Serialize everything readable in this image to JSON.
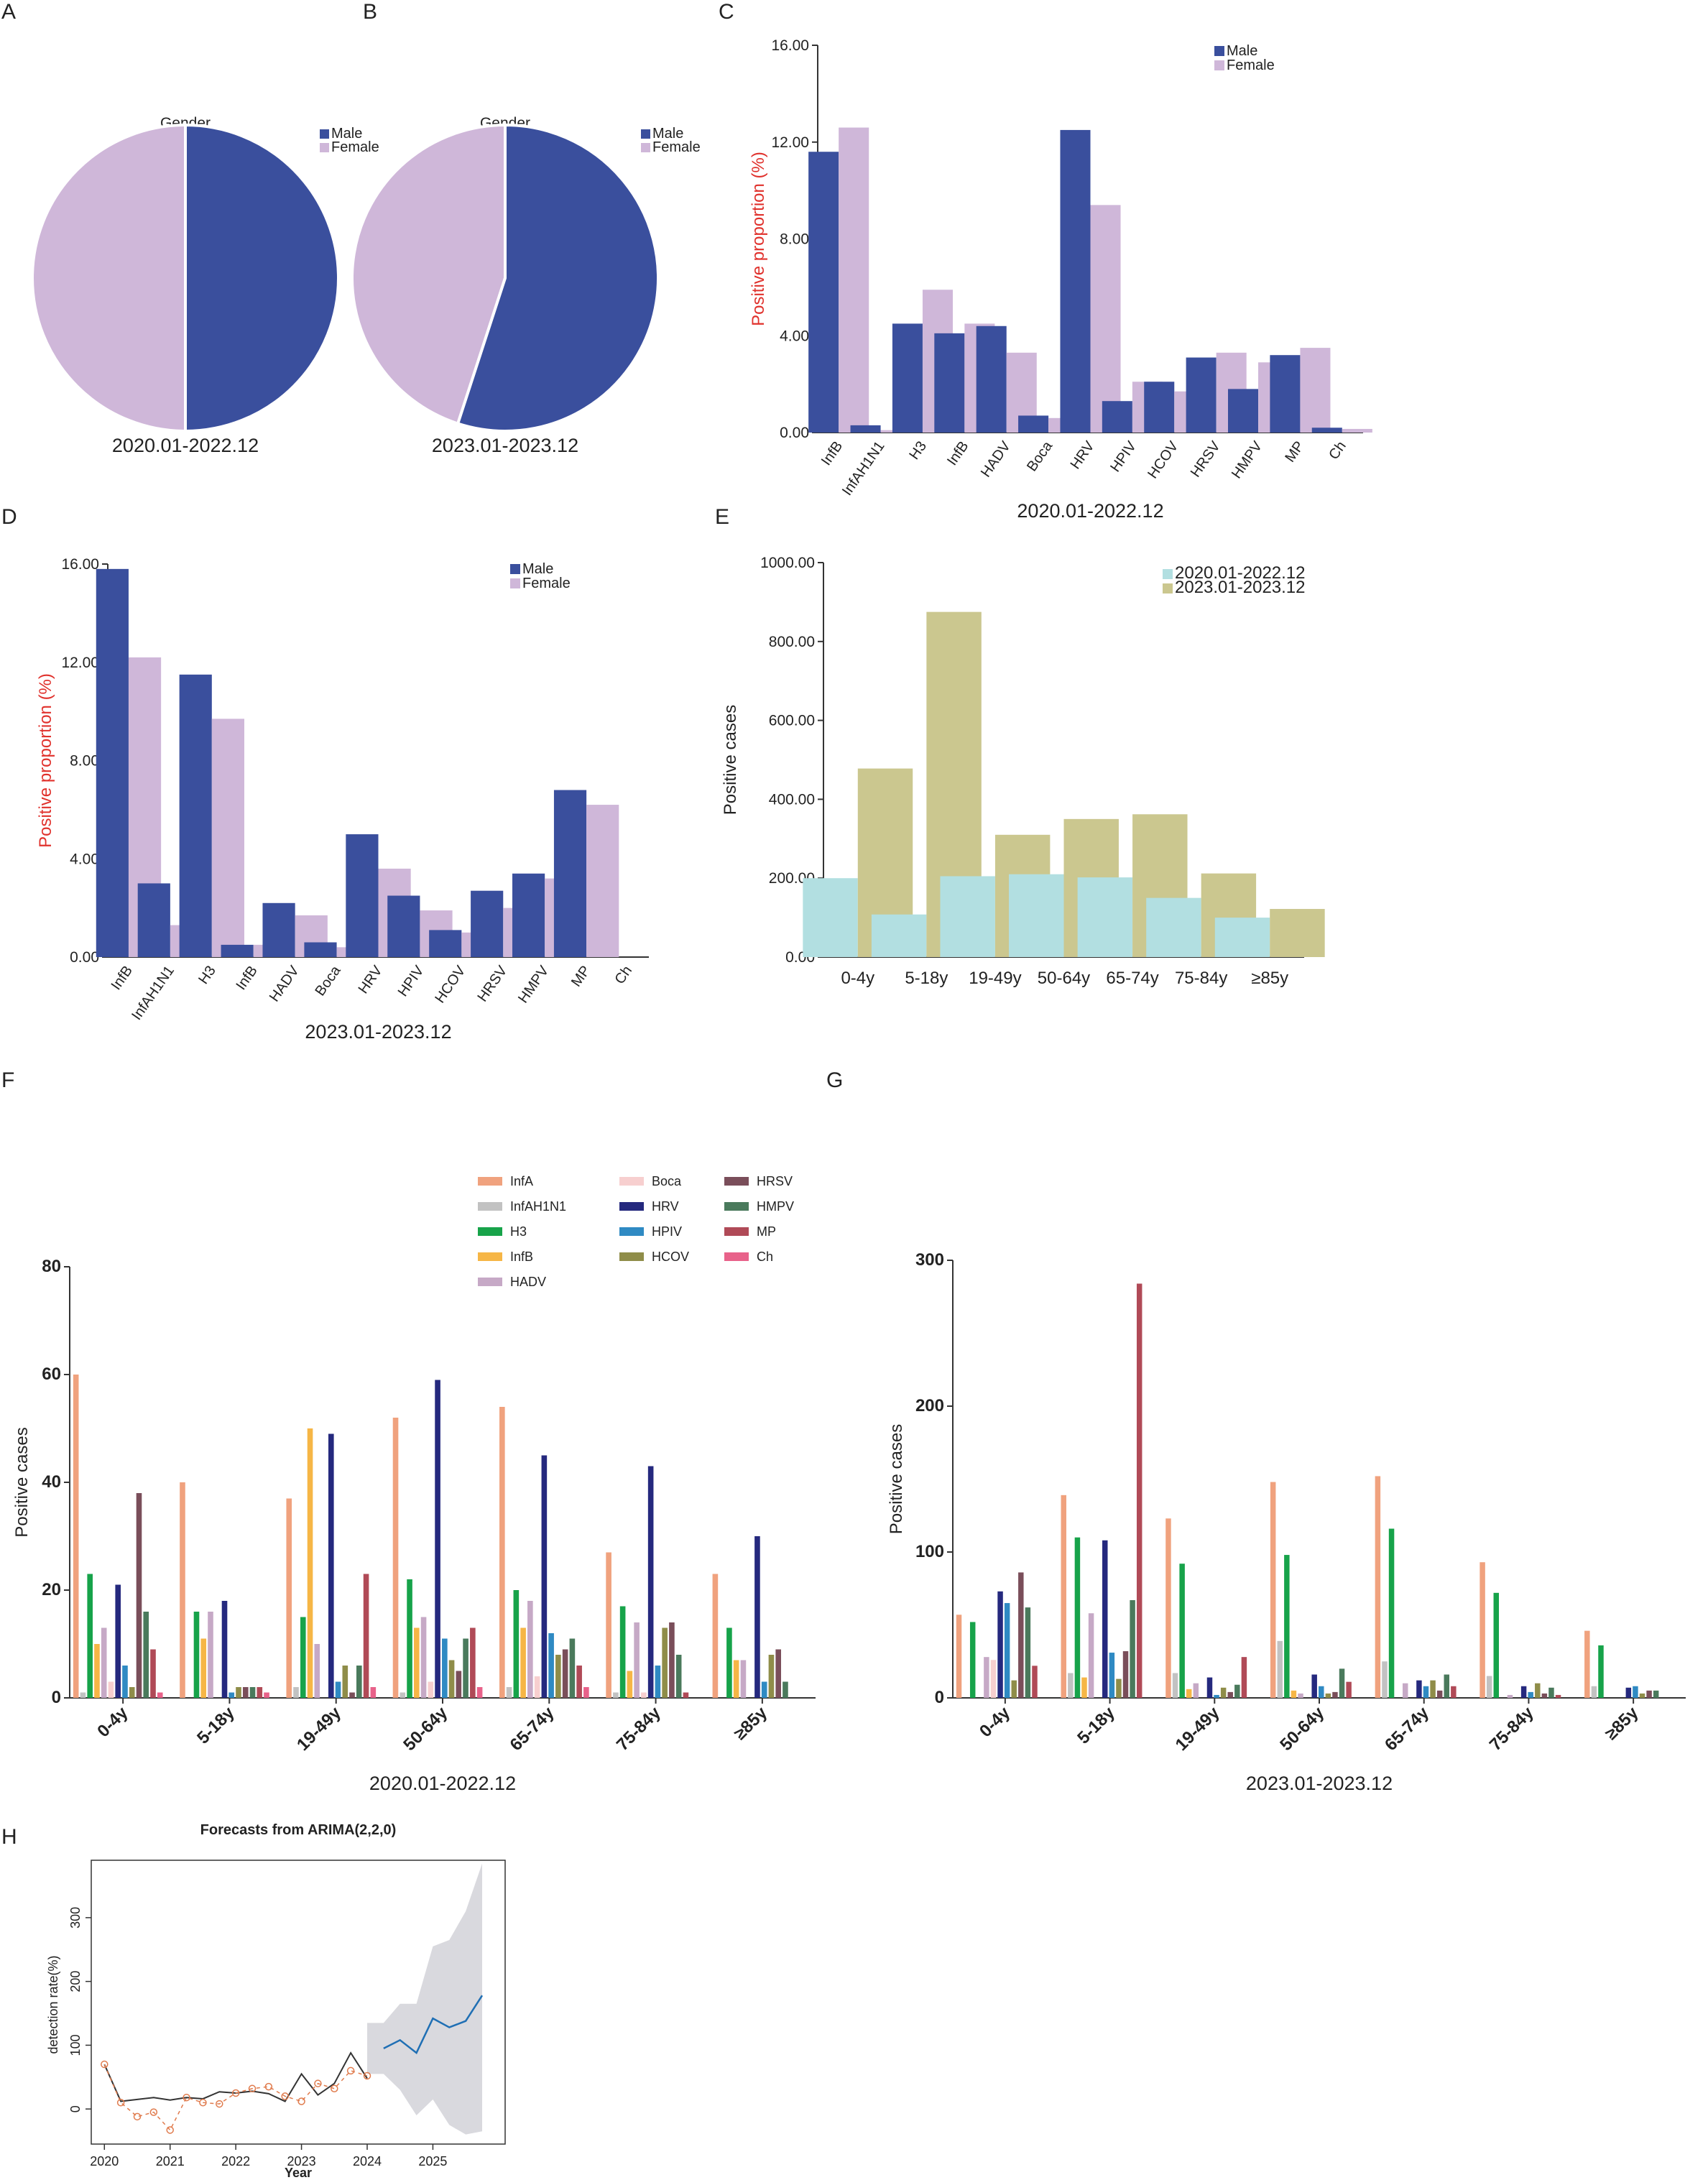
{
  "panel_letters": {
    "A": "A",
    "B": "B",
    "C": "C",
    "D": "D",
    "E": "E",
    "F": "F",
    "G": "G",
    "H": "H"
  },
  "colors": {
    "male": "#3a4f9d",
    "female": "#cfb7d9",
    "period1": "#b2dfe1",
    "period2": "#cbc78f",
    "ylabel_red": "#e0312c",
    "axis": "#333333"
  },
  "chart_data": [
    {
      "id": "A",
      "type": "pie",
      "title": "Gender",
      "xlabel": "2020.01-2022.12",
      "legend": [
        "Male",
        "Female"
      ],
      "values": [
        50.0,
        50.0
      ]
    },
    {
      "id": "B",
      "type": "pie",
      "title": "Gender",
      "xlabel": "2023.01-2023.12",
      "legend": [
        "Male",
        "Female"
      ],
      "values": [
        55.0,
        45.0
      ]
    },
    {
      "id": "C",
      "type": "bar",
      "xlabel": "2020.01-2022.12",
      "ylabel": "Positive proportion (%)",
      "ylim": [
        0,
        16
      ],
      "yticks": [
        "0.00",
        "4.00",
        "8.00",
        "12.00",
        "16.00"
      ],
      "categories": [
        "InfB",
        "InfAH1N1",
        "H3",
        "InfB",
        "HADV",
        "Boca",
        "HRV",
        "HPIV",
        "HCOV",
        "HRSV",
        "HMPV",
        "MP",
        "Ch"
      ],
      "series": [
        {
          "name": "Male",
          "values": [
            11.6,
            0.3,
            4.5,
            4.1,
            4.4,
            0.7,
            12.5,
            1.3,
            2.1,
            3.1,
            1.8,
            3.2,
            0.2
          ]
        },
        {
          "name": "Female",
          "values": [
            12.6,
            0.1,
            5.9,
            4.5,
            3.3,
            0.6,
            9.4,
            2.1,
            1.7,
            3.3,
            2.9,
            3.5,
            0.15
          ]
        }
      ]
    },
    {
      "id": "D",
      "type": "bar",
      "xlabel": "2023.01-2023.12",
      "ylabel": "Positive proportion (%)",
      "ylim": [
        0,
        16
      ],
      "yticks": [
        "0.00",
        "4.00",
        "8.00",
        "12.00",
        "16.00"
      ],
      "categories": [
        "InfB",
        "InfAH1N1",
        "H3",
        "InfB",
        "HADV",
        "Boca",
        "HRV",
        "HPIV",
        "HCOV",
        "HRSV",
        "HMPV",
        "MP",
        "Ch"
      ],
      "series": [
        {
          "name": "Male",
          "values": [
            15.8,
            3.0,
            11.5,
            0.5,
            2.2,
            0.6,
            5.0,
            2.5,
            1.1,
            2.7,
            3.4,
            6.8,
            0.0
          ]
        },
        {
          "name": "Female",
          "values": [
            12.2,
            1.3,
            9.7,
            0.5,
            1.7,
            0.4,
            3.6,
            1.9,
            1.0,
            2.0,
            3.2,
            6.2,
            0.0
          ]
        }
      ]
    },
    {
      "id": "E",
      "type": "bar",
      "xlabel": "",
      "ylabel": "Positive cases",
      "ylim": [
        0,
        1000
      ],
      "yticks": [
        "0.00",
        "200.00",
        "400.00",
        "600.00",
        "800.00",
        "1000.00"
      ],
      "categories": [
        "0-4y",
        "5-18y",
        "19-49y",
        "50-64y",
        "65-74y",
        "75-84y",
        "≥85y"
      ],
      "series": [
        {
          "name": "2020.01-2022.12",
          "values": [
            200,
            108,
            205,
            210,
            202,
            150,
            100
          ]
        },
        {
          "name": "2023.01-2023.12",
          "values": [
            478,
            875,
            310,
            350,
            362,
            212,
            122
          ]
        }
      ]
    },
    {
      "id": "F",
      "type": "bar",
      "xlabel": "2020.01-2022.12",
      "ylabel": "Positive cases",
      "ylim": [
        0,
        80
      ],
      "yticks": [
        "0",
        "20",
        "40",
        "60",
        "80"
      ],
      "categories": [
        "0-4y",
        "5-18y",
        "19-49y",
        "50-64y",
        "65-74y",
        "75-84y",
        "≥85y"
      ],
      "legend_names": [
        "InfA",
        "InfAH1N1",
        "H3",
        "InfB",
        "HADV",
        "Boca",
        "HRV",
        "HPIV",
        "HCOV",
        "HRSV",
        "HMPV",
        "MP",
        "Ch"
      ],
      "legend_colors": [
        "#f0a27e",
        "#c2c2c2",
        "#17a34a",
        "#f6b646",
        "#c6a9c6",
        "#f7cfcf",
        "#25297e",
        "#2f8ac3",
        "#8f8d49",
        "#7a4e5a",
        "#4a7a5c",
        "#b04a57",
        "#e8628a"
      ],
      "series_by_group": [
        [
          60,
          1,
          23,
          10,
          13,
          3,
          21,
          6,
          2,
          38,
          16,
          9,
          1
        ],
        [
          40,
          0,
          16,
          11,
          16,
          0,
          18,
          1,
          2,
          2,
          2,
          2,
          1
        ],
        [
          37,
          2,
          15,
          50,
          10,
          0,
          49,
          3,
          6,
          1,
          6,
          23,
          2
        ],
        [
          52,
          1,
          22,
          13,
          15,
          3,
          59,
          11,
          7,
          5,
          11,
          13,
          2
        ],
        [
          54,
          2,
          20,
          13,
          18,
          4,
          45,
          12,
          8,
          9,
          11,
          6,
          2
        ],
        [
          27,
          1,
          17,
          5,
          14,
          1,
          43,
          6,
          13,
          14,
          8,
          1,
          0
        ],
        [
          23,
          0,
          13,
          7,
          7,
          0,
          30,
          3,
          8,
          9,
          3,
          0,
          0
        ]
      ]
    },
    {
      "id": "G",
      "type": "bar",
      "xlabel": "2023.01-2023.12",
      "ylabel": "Positive cases",
      "ylim": [
        0,
        300
      ],
      "yticks": [
        "0",
        "100",
        "200",
        "300"
      ],
      "categories": [
        "0-4y",
        "5-18y",
        "19-49y",
        "50-64y",
        "65-74y",
        "75-84y",
        "≥85y"
      ],
      "legend_names": [
        "InfA",
        "InfAH1N1",
        "H3",
        "InfB",
        "HADV",
        "Boca",
        "HRV",
        "HPIV",
        "HCOV",
        "HRSV",
        "HMPV",
        "MP",
        "Ch"
      ],
      "legend_colors": [
        "#f0a27e",
        "#c2c2c2",
        "#17a34a",
        "#f6b646",
        "#c6a9c6",
        "#f7cfcf",
        "#25297e",
        "#2f8ac3",
        "#8f8d49",
        "#7a4e5a",
        "#4a7a5c",
        "#b04a57",
        "#e8628a"
      ],
      "series_by_group": [
        [
          57,
          0,
          52,
          0,
          28,
          26,
          73,
          65,
          12,
          86,
          62,
          22,
          0
        ],
        [
          139,
          17,
          110,
          14,
          58,
          0,
          108,
          31,
          13,
          32,
          67,
          284,
          0
        ],
        [
          123,
          17,
          92,
          6,
          10,
          0,
          14,
          2,
          7,
          4,
          9,
          28,
          0
        ],
        [
          148,
          39,
          98,
          5,
          3,
          0,
          16,
          8,
          3,
          4,
          20,
          11,
          0
        ],
        [
          152,
          25,
          116,
          0,
          10,
          0,
          12,
          8,
          12,
          5,
          16,
          8,
          0
        ],
        [
          93,
          15,
          72,
          0,
          2,
          0,
          8,
          4,
          10,
          3,
          7,
          2,
          0
        ],
        [
          46,
          8,
          36,
          0,
          0,
          0,
          7,
          8,
          3,
          5,
          5,
          0,
          0
        ]
      ]
    },
    {
      "id": "H",
      "type": "line",
      "title": "Forecasts from ARIMA(2,2,0)",
      "xlabel": "Year",
      "ylabel": "detection rate(%)",
      "xlim": [
        2019.8,
        2026.1
      ],
      "ylim": [
        -55,
        390
      ],
      "xticks": [
        "2020",
        "2021",
        "2022",
        "2023",
        "2024",
        "2025"
      ],
      "yticks": [
        "0",
        "100",
        "200",
        "300"
      ],
      "observed": {
        "x": [
          2020.0,
          2020.25,
          2020.5,
          2020.75,
          2021.0,
          2021.25,
          2021.5,
          2021.75,
          2022.0,
          2022.25,
          2022.5,
          2022.75,
          2023.0,
          2023.25,
          2023.5,
          2023.75,
          2024.0
        ],
        "y": [
          70,
          12,
          15,
          18,
          14,
          18,
          16,
          27,
          25,
          28,
          24,
          12,
          55,
          22,
          40,
          88,
          48
        ]
      },
      "fitted": {
        "x": [
          2020.0,
          2020.25,
          2020.5,
          2020.75,
          2021.0,
          2021.25,
          2021.5,
          2021.75,
          2022.0,
          2022.25,
          2022.5,
          2022.75,
          2023.0,
          2023.25,
          2023.5,
          2023.75,
          2024.0
        ],
        "y": [
          70,
          10,
          -12,
          -5,
          -33,
          18,
          10,
          8,
          25,
          32,
          35,
          20,
          12,
          40,
          32,
          60,
          52
        ]
      },
      "forecast": {
        "x": [
          2024.25,
          2024.5,
          2024.75,
          2025.0,
          2025.25,
          2025.5,
          2025.75
        ],
        "y": [
          95,
          108,
          88,
          142,
          128,
          138,
          178
        ],
        "lower": [
          55,
          30,
          -10,
          15,
          -25,
          -40,
          -35
        ],
        "upper": [
          135,
          165,
          165,
          255,
          265,
          310,
          385
        ]
      }
    }
  ]
}
